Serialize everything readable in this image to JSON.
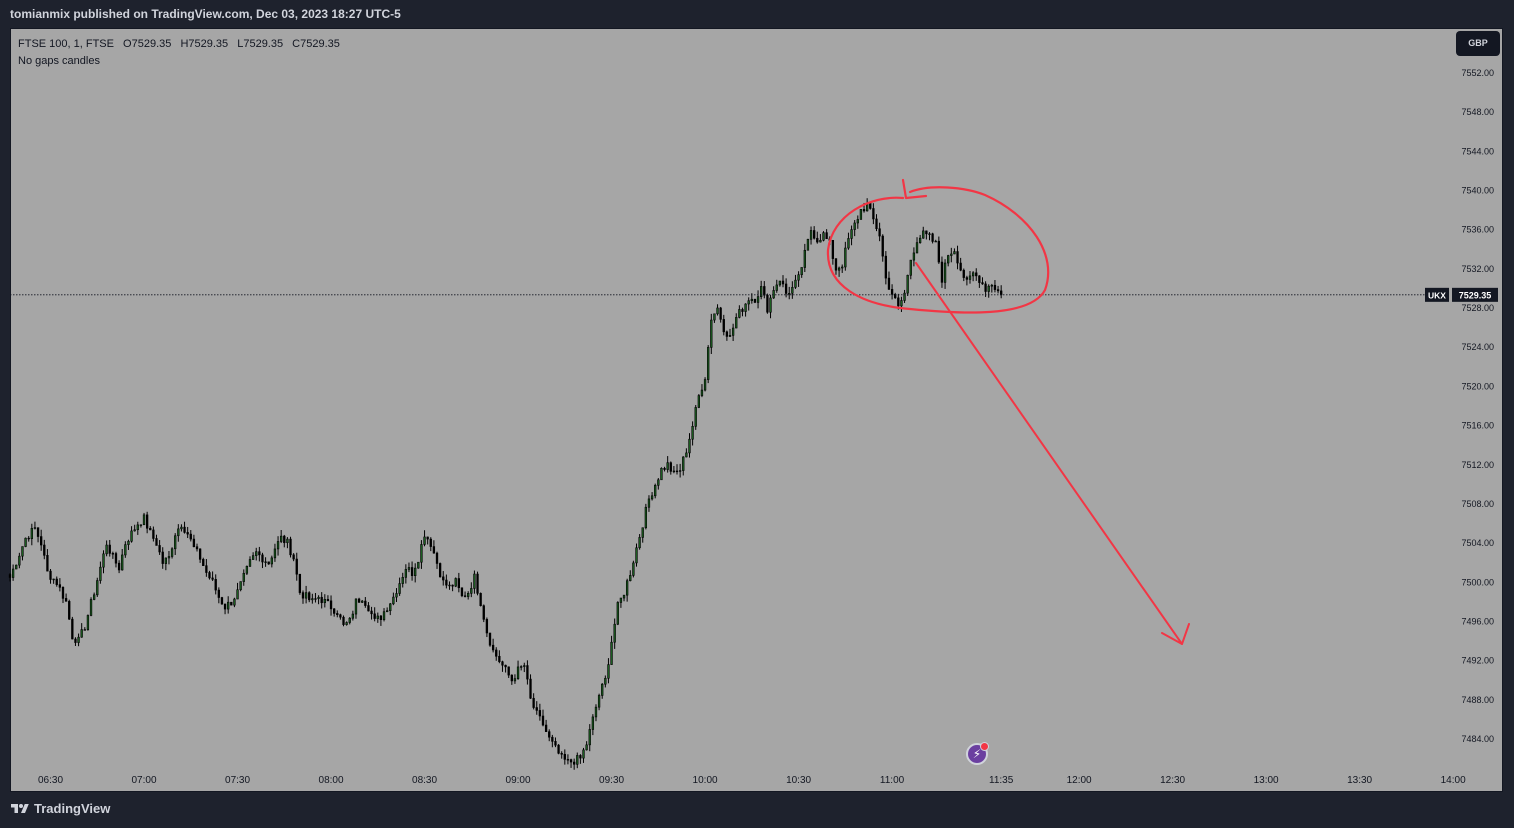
{
  "header": {
    "published_text": "tomianmix published on TradingView.com, Dec 03, 2023 18:27 UTC-5"
  },
  "legend": {
    "symbol": "FTSE 100, 1, FTSE",
    "open": "O7529.35",
    "high": "H7529.35",
    "low": "L7529.35",
    "close": "C7529.35",
    "candle_mode": "No gaps candles"
  },
  "currency_button": "GBP",
  "footer": {
    "brand": "TradingView"
  },
  "chart_data": {
    "type": "candlestick",
    "interval": "1 minute",
    "grid": false,
    "legend_position": "top-left",
    "y_ticks": [
      "7552.00",
      "7548.00",
      "7544.00",
      "7540.00",
      "7536.00",
      "7532.00",
      "7528.00",
      "7524.00",
      "7520.00",
      "7516.00",
      "7512.00",
      "7508.00",
      "7504.00",
      "7500.00",
      "7496.00",
      "7492.00",
      "7488.00",
      "7484.00"
    ],
    "y_tick_values": [
      7552,
      7548,
      7544,
      7540,
      7536,
      7532,
      7528,
      7524,
      7520,
      7516,
      7512,
      7508,
      7504,
      7500,
      7496,
      7492,
      7488,
      7484
    ],
    "ylim": [
      7481.2,
      7554.9
    ],
    "x_ticks": [
      "06:30",
      "07:00",
      "07:30",
      "08:00",
      "08:30",
      "09:00",
      "09:30",
      "10:00",
      "10:30",
      "11:00",
      "11:35",
      "12:00",
      "12:30",
      "13:00",
      "13:30",
      "14:00"
    ],
    "x_tick_minutes": [
      390,
      420,
      450,
      480,
      510,
      540,
      570,
      600,
      630,
      660,
      695,
      720,
      750,
      780,
      810,
      840
    ],
    "xlim": [
      377,
      856
    ],
    "last_price": {
      "symbol": "UKX",
      "value": 7529.35
    },
    "close_series": {
      "start_minute": 377,
      "end_minute": 695,
      "anchors": [
        [
          377,
          7500.5
        ],
        [
          382,
          7504.5
        ],
        [
          385,
          7505.5
        ],
        [
          387,
          7504
        ],
        [
          389,
          7501
        ],
        [
          392,
          7500
        ],
        [
          395,
          7498
        ],
        [
          397,
          7494.5
        ],
        [
          399,
          7494
        ],
        [
          401,
          7495.5
        ],
        [
          404,
          7499
        ],
        [
          406,
          7501.5
        ],
        [
          408,
          7504
        ],
        [
          410,
          7502.5
        ],
        [
          412,
          7501.5
        ],
        [
          414,
          7504
        ],
        [
          416,
          7505
        ],
        [
          418,
          7506
        ],
        [
          420,
          7506.5
        ],
        [
          422,
          7505
        ],
        [
          424,
          7504
        ],
        [
          426,
          7502
        ],
        [
          428,
          7502.5
        ],
        [
          430,
          7505
        ],
        [
          432,
          7506
        ],
        [
          434,
          7505
        ],
        [
          436,
          7503.5
        ],
        [
          438,
          7502.5
        ],
        [
          440,
          7501
        ],
        [
          442,
          7500
        ],
        [
          444,
          7498.5
        ],
        [
          446,
          7497.5
        ],
        [
          448,
          7498
        ],
        [
          450,
          7499
        ],
        [
          452,
          7500.5
        ],
        [
          454,
          7502
        ],
        [
          456,
          7503
        ],
        [
          458,
          7502.5
        ],
        [
          460,
          7502
        ],
        [
          462,
          7503.5
        ],
        [
          464,
          7504.5
        ],
        [
          466,
          7504
        ],
        [
          468,
          7502.5
        ],
        [
          470,
          7499
        ],
        [
          472,
          7498.5
        ],
        [
          474,
          7498
        ],
        [
          476,
          7498.5
        ],
        [
          478,
          7498
        ],
        [
          480,
          7497.5
        ],
        [
          482,
          7497
        ],
        [
          484,
          7495.5
        ],
        [
          486,
          7496
        ],
        [
          488,
          7498
        ],
        [
          490,
          7498.5
        ],
        [
          492,
          7497.5
        ],
        [
          494,
          7496
        ],
        [
          496,
          7496.5
        ],
        [
          498,
          7497.5
        ],
        [
          500,
          7498.5
        ],
        [
          502,
          7500
        ],
        [
          504,
          7501.5
        ],
        [
          506,
          7501
        ],
        [
          508,
          7502.5
        ],
        [
          510,
          7505
        ],
        [
          512,
          7504
        ],
        [
          514,
          7502
        ],
        [
          516,
          7500
        ],
        [
          518,
          7499.5
        ],
        [
          520,
          7500
        ],
        [
          522,
          7498.5
        ],
        [
          524,
          7499
        ],
        [
          526,
          7500.5
        ],
        [
          528,
          7498
        ],
        [
          530,
          7495
        ],
        [
          532,
          7493
        ],
        [
          534,
          7492
        ],
        [
          536,
          7491
        ],
        [
          538,
          7490
        ],
        [
          540,
          7491
        ],
        [
          542,
          7491.5
        ],
        [
          544,
          7488
        ],
        [
          546,
          7486.5
        ],
        [
          548,
          7485.5
        ],
        [
          550,
          7484
        ],
        [
          552,
          7483
        ],
        [
          554,
          7482
        ],
        [
          556,
          7481.6
        ],
        [
          558,
          7481.8
        ],
        [
          560,
          7482
        ],
        [
          562,
          7483.5
        ],
        [
          564,
          7486
        ],
        [
          566,
          7488.5
        ],
        [
          568,
          7490
        ],
        [
          570,
          7494
        ],
        [
          572,
          7497.5
        ],
        [
          574,
          7499
        ],
        [
          576,
          7501
        ],
        [
          578,
          7503.5
        ],
        [
          580,
          7506
        ],
        [
          582,
          7508.5
        ],
        [
          584,
          7510
        ],
        [
          586,
          7511.5
        ],
        [
          588,
          7512
        ],
        [
          590,
          7511
        ],
        [
          592,
          7511.5
        ],
        [
          594,
          7513.5
        ],
        [
          596,
          7516
        ],
        [
          598,
          7519
        ],
        [
          600,
          7521
        ],
        [
          602,
          7527
        ],
        [
          604,
          7528
        ],
        [
          606,
          7526
        ],
        [
          608,
          7525
        ],
        [
          610,
          7527
        ],
        [
          612,
          7528
        ],
        [
          614,
          7529
        ],
        [
          616,
          7529
        ],
        [
          618,
          7530
        ],
        [
          620,
          7528
        ],
        [
          622,
          7530
        ],
        [
          624,
          7531
        ],
        [
          626,
          7529.5
        ],
        [
          628,
          7530
        ],
        [
          630,
          7531
        ],
        [
          632,
          7533.5
        ],
        [
          634,
          7536
        ],
        [
          636,
          7535
        ],
        [
          638,
          7535.5
        ],
        [
          640,
          7534.5
        ],
        [
          642,
          7532
        ],
        [
          644,
          7532.5
        ],
        [
          646,
          7535
        ],
        [
          648,
          7536.5
        ],
        [
          650,
          7538
        ],
        [
          652,
          7538.5
        ],
        [
          654,
          7537
        ],
        [
          656,
          7535.5
        ],
        [
          658,
          7531
        ],
        [
          660,
          7529.5
        ],
        [
          662,
          7528
        ],
        [
          664,
          7529.5
        ],
        [
          666,
          7533
        ],
        [
          668,
          7535
        ],
        [
          670,
          7535.5
        ],
        [
          672,
          7535.2
        ],
        [
          674,
          7534.5
        ],
        [
          676,
          7531
        ],
        [
          678,
          7533.5
        ],
        [
          680,
          7534
        ],
        [
          682,
          7532
        ],
        [
          684,
          7530.5
        ],
        [
          686,
          7531.5
        ],
        [
          688,
          7531
        ],
        [
          690,
          7530
        ],
        [
          692,
          7530.5
        ],
        [
          695,
          7529.35
        ]
      ]
    }
  },
  "annotations": {
    "stroke_color": "#f23645",
    "circle_arrow": "ellipse around 10:45-11:35 top with arrow tip",
    "trend_arrow": "downward arrow toward 12:30 / 7494"
  }
}
